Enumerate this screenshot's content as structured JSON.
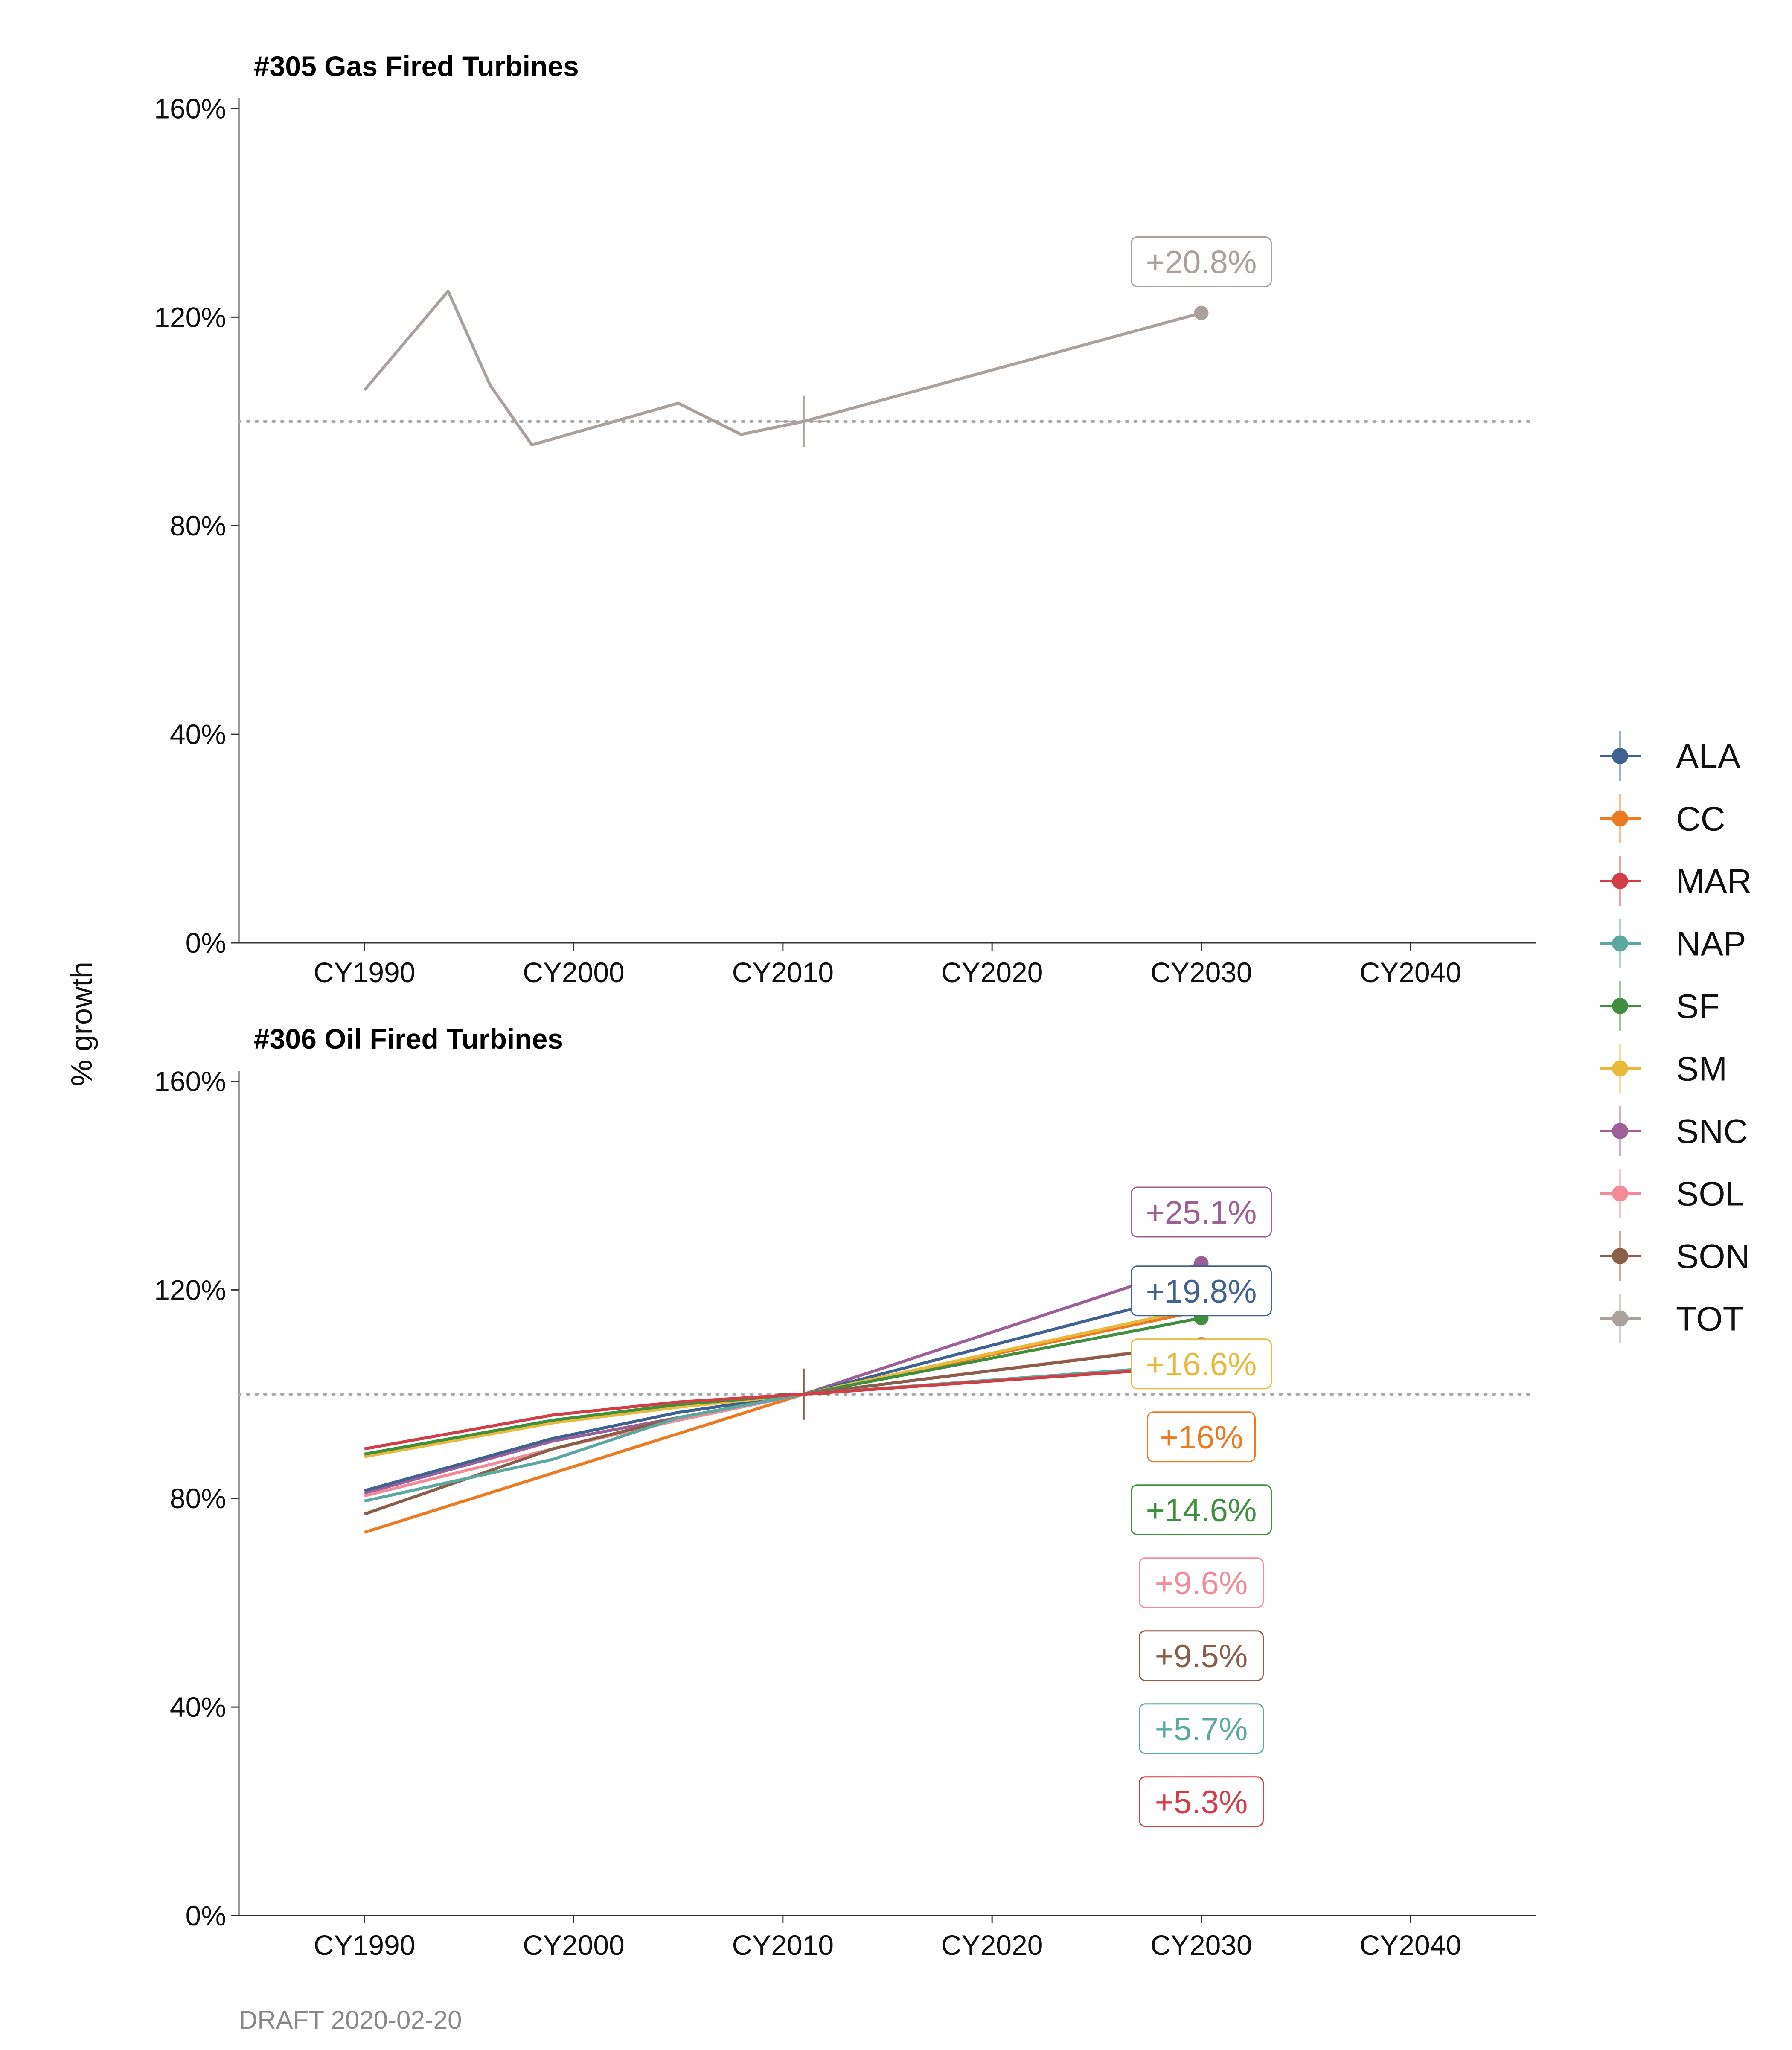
{
  "ylabel": "% growth",
  "caption": "DRAFT 2020-02-20",
  "colors": {
    "ALA": "#3f6293",
    "CC": "#ec7a21",
    "MAR": "#d43d45",
    "NAP": "#5aa8a0",
    "SF": "#3f8f3f",
    "SM": "#e8b93a",
    "SNC": "#9c5f97",
    "SOL": "#f28a9a",
    "SON": "#8a5e48",
    "TOT": "#aaa09c"
  },
  "legend": {
    "items": [
      "ALA",
      "CC",
      "MAR",
      "NAP",
      "SF",
      "SM",
      "SNC",
      "SOL",
      "SON",
      "TOT"
    ]
  },
  "chart_data": [
    {
      "type": "line",
      "title": "#305 Gas Fired Turbines",
      "xlim": [
        1984,
        2046
      ],
      "ylim": [
        0,
        1.62
      ],
      "yticks": [
        0,
        0.4,
        0.8,
        1.2,
        1.6
      ],
      "ytick_labels": [
        "0%",
        "40%",
        "80%",
        "120%",
        "160%"
      ],
      "xticks": [
        1990,
        2000,
        2010,
        2020,
        2030,
        2040
      ],
      "xtick_labels": [
        "CY1990",
        "CY2000",
        "CY2010",
        "CY2020",
        "CY2030",
        "CY2040"
      ],
      "reference_y": 1.0,
      "base_year": 2011,
      "end_year": 2030,
      "series": [
        {
          "name": "TOT",
          "x": [
            1990,
            1994,
            1996,
            1998,
            2005,
            2008,
            2011,
            2030
          ],
          "values": [
            1.06,
            1.25,
            1.07,
            0.955,
            1.035,
            0.975,
            1.0,
            1.208
          ],
          "end_label": "+20.8%"
        }
      ]
    },
    {
      "type": "line",
      "title": "#306 Oil Fired Turbines",
      "xlim": [
        1984,
        2046
      ],
      "ylim": [
        0,
        1.62
      ],
      "yticks": [
        0,
        0.4,
        0.8,
        1.2,
        1.6
      ],
      "ytick_labels": [
        "0%",
        "40%",
        "80%",
        "120%",
        "160%"
      ],
      "xticks": [
        1990,
        2000,
        2010,
        2020,
        2030,
        2040
      ],
      "xtick_labels": [
        "CY1990",
        "CY2000",
        "CY2010",
        "CY2020",
        "CY2030",
        "CY2040"
      ],
      "reference_y": 1.0,
      "base_year": 2011,
      "end_year": 2030,
      "series": [
        {
          "name": "SNC",
          "x": [
            1990,
            1999,
            2005,
            2011,
            2030
          ],
          "values": [
            0.81,
            0.91,
            0.955,
            1.0,
            1.251
          ],
          "end_label": "+25.1%"
        },
        {
          "name": "ALA",
          "x": [
            1990,
            1999,
            2005,
            2011,
            2030
          ],
          "values": [
            0.815,
            0.915,
            0.965,
            1.0,
            1.198
          ],
          "end_label": "+19.8%"
        },
        {
          "name": "CC",
          "x": [
            1990,
            2011,
            2030
          ],
          "values": [
            0.735,
            1.0,
            1.16
          ],
          "end_label": "+16%"
        },
        {
          "name": "SM",
          "x": [
            1990,
            1999,
            2005,
            2011,
            2030
          ],
          "values": [
            0.88,
            0.945,
            0.975,
            1.0,
            1.166
          ],
          "end_label": "+16.6%"
        },
        {
          "name": "SF",
          "x": [
            1990,
            1999,
            2005,
            2011,
            2030
          ],
          "values": [
            0.885,
            0.95,
            0.98,
            1.0,
            1.146
          ],
          "end_label": "+14.6%"
        },
        {
          "name": "SOL",
          "x": [
            1990,
            1999,
            2005,
            2011,
            2030
          ],
          "values": [
            0.805,
            0.895,
            0.95,
            1.0,
            1.096
          ],
          "end_label": "+9.6%"
        },
        {
          "name": "SON",
          "x": [
            1990,
            1999,
            2005,
            2011,
            2030
          ],
          "values": [
            0.77,
            0.895,
            0.955,
            1.0,
            1.095
          ],
          "end_label": "+9.5%"
        },
        {
          "name": "NAP",
          "x": [
            1990,
            1999,
            2005,
            2011,
            2030
          ],
          "values": [
            0.795,
            0.875,
            0.955,
            1.0,
            1.057
          ],
          "end_label": "+5.7%"
        },
        {
          "name": "MAR",
          "x": [
            1990,
            1999,
            2005,
            2011,
            2030
          ],
          "values": [
            0.895,
            0.96,
            0.985,
            1.0,
            1.053
          ],
          "end_label": "+5.3%"
        }
      ]
    }
  ]
}
